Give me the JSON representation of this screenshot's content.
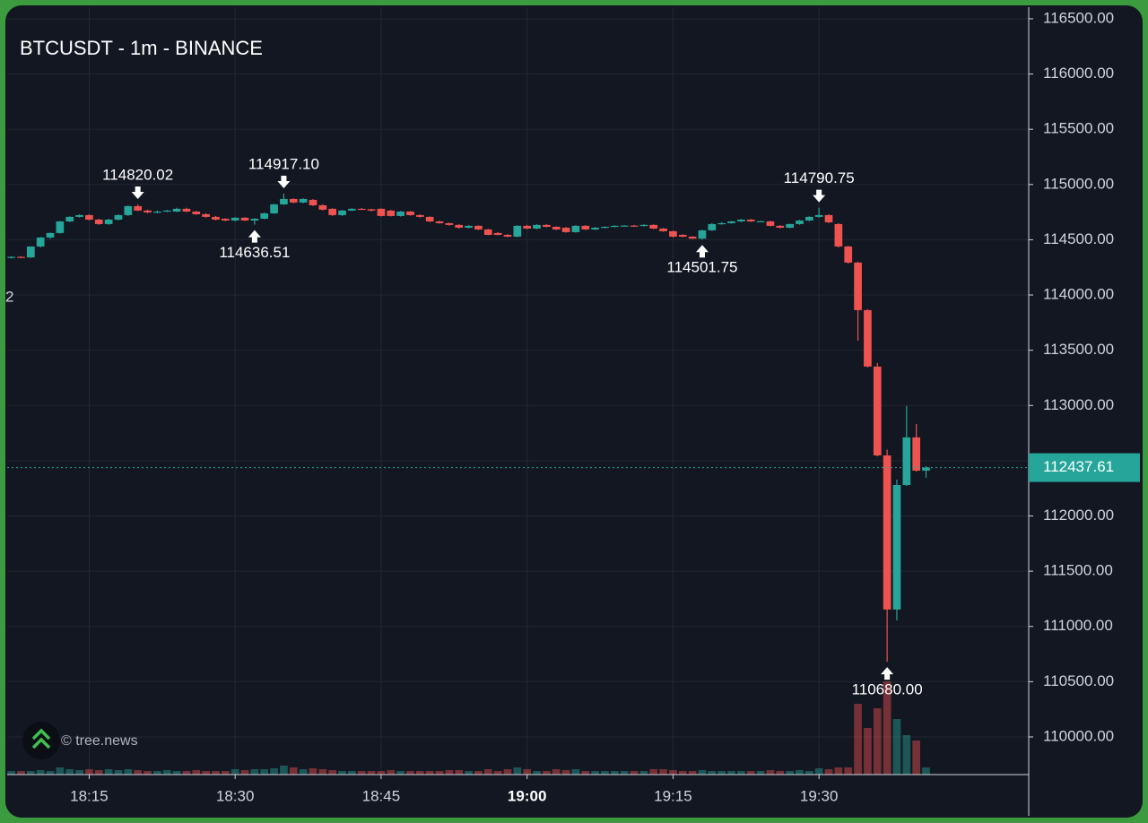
{
  "chart_data": {
    "type": "candlestick",
    "title": "BTCUSDT - 1m - BINANCE",
    "watermark": "© tree.news",
    "left_label": "2",
    "up_color": "#26a69a",
    "down_color": "#ef5350",
    "grid": true,
    "categories": [
      null,
      null,
      null,
      null,
      null,
      null,
      null,
      null,
      "18:15",
      null,
      null,
      null,
      null,
      null,
      null,
      null,
      null,
      null,
      null,
      null,
      null,
      null,
      null,
      "18:30",
      null,
      null,
      null,
      null,
      null,
      null,
      null,
      null,
      null,
      null,
      null,
      null,
      null,
      null,
      "18:45",
      null,
      null,
      null,
      null,
      null,
      null,
      null,
      null,
      null,
      null,
      null,
      null,
      null,
      null,
      "19:00",
      null,
      null,
      null,
      null,
      null,
      null,
      null,
      null,
      null,
      null,
      null,
      null,
      null,
      null,
      "19:15",
      null,
      null,
      null,
      null,
      null,
      null,
      null,
      null,
      null,
      null,
      null,
      null,
      null,
      null,
      "19:30",
      null,
      null,
      null,
      null,
      null,
      null,
      null,
      null,
      null,
      null,
      null
    ],
    "bold_category": 53,
    "open": [
      114341,
      114345,
      114340,
      114439,
      114520,
      114561,
      114666,
      114707,
      114723,
      114682,
      114642,
      114682,
      114723,
      114804,
      114764,
      114747,
      114755,
      114755,
      114780,
      114755,
      114731,
      114707,
      114690,
      114674,
      114699,
      114674,
      114690,
      114739,
      114820,
      114869,
      114837,
      114861,
      114812,
      114780,
      114723,
      114764,
      114780,
      114776,
      114780,
      114764,
      114715,
      114755,
      114723,
      114707,
      114666,
      114650,
      114634,
      114609,
      114626,
      114593,
      114561,
      114544,
      114528,
      114626,
      114601,
      114634,
      114617,
      114609,
      114569,
      114626,
      114593,
      114609,
      114617,
      114626,
      114628,
      114626,
      114634,
      114601,
      114577,
      114544,
      114528,
      114510,
      114585,
      114642,
      114650,
      114666,
      114682,
      114666,
      114666,
      114626,
      114609,
      114642,
      114674,
      114707,
      114723,
      114642,
      114439,
      114293,
      113863,
      113352,
      112548,
      111153,
      112280,
      112711,
      112410
    ],
    "high": [
      114350,
      114352,
      114440,
      114525,
      114565,
      114670,
      114712,
      114730,
      114730,
      114690,
      114690,
      114730,
      114810,
      114820.02,
      114772,
      114765,
      114770,
      114790,
      114790,
      114760,
      114740,
      114715,
      114695,
      114705,
      114705,
      114695,
      114745,
      114825,
      114917.1,
      114875,
      114875,
      114868,
      114820,
      114785,
      114770,
      114785,
      114788,
      114780,
      114785,
      114770,
      114760,
      114760,
      114730,
      114712,
      114672,
      114655,
      114640,
      114632,
      114630,
      114600,
      114568,
      114550,
      114632,
      114635,
      114640,
      114640,
      114622,
      114615,
      114632,
      114632,
      114615,
      114622,
      114630,
      114632,
      114634,
      114640,
      114640,
      114606,
      114582,
      114550,
      114532,
      114590,
      114650,
      114660,
      114670,
      114688,
      114688,
      114672,
      114672,
      114632,
      114645,
      114680,
      114712,
      114790.75,
      114730,
      114650,
      114445,
      114300,
      113870,
      113384,
      112600,
      112329,
      112995,
      112832,
      112450
    ],
    "low": [
      114330,
      114335,
      114335,
      114430,
      114510,
      114555,
      114660,
      114700,
      114675,
      114635,
      114635,
      114675,
      114715,
      114760,
      114740,
      114740,
      114750,
      114750,
      114750,
      114725,
      114700,
      114675,
      114668,
      114668,
      114670,
      114636.51,
      114685,
      114735,
      114815,
      114830,
      114830,
      114805,
      114765,
      114715,
      114715,
      114760,
      114770,
      114755,
      114710,
      114710,
      114710,
      114718,
      114700,
      114660,
      114645,
      114628,
      114600,
      114603,
      114588,
      114540,
      114540,
      114522,
      114522,
      114596,
      114595,
      114612,
      114588,
      114564,
      114563,
      114588,
      114588,
      114604,
      114612,
      114620,
      114620,
      114620,
      114596,
      114572,
      114522,
      114522,
      114506,
      114501.75,
      114580,
      114636,
      114645,
      114660,
      114660,
      114660,
      114620,
      114604,
      114603,
      114636,
      114668,
      114700,
      114650,
      114430,
      114285,
      113587,
      113345,
      112540,
      110680,
      111055,
      112270,
      112400,
      112345
    ],
    "close": [
      114345,
      114340,
      114439,
      114520,
      114561,
      114666,
      114707,
      114723,
      114682,
      114642,
      114682,
      114723,
      114804,
      114764,
      114747,
      114755,
      114764,
      114780,
      114755,
      114731,
      114707,
      114682,
      114674,
      114699,
      114674,
      114690,
      114739,
      114820,
      114869,
      114837,
      114869,
      114812,
      114772,
      114723,
      114764,
      114780,
      114776,
      114764,
      114715,
      114715,
      114755,
      114723,
      114707,
      114666,
      114650,
      114634,
      114609,
      114626,
      114593,
      114544,
      114544,
      114528,
      114626,
      114601,
      114634,
      114617,
      114593,
      114569,
      114626,
      114593,
      114609,
      114617,
      114626,
      114628,
      114626,
      114634,
      114601,
      114577,
      114528,
      114528,
      114510,
      114585,
      114642,
      114650,
      114666,
      114682,
      114666,
      114668,
      114626,
      114609,
      114642,
      114674,
      114707,
      114723,
      114658,
      114439,
      114293,
      113863,
      113352,
      112548,
      111153,
      112280,
      112711,
      112410,
      112437.61
    ],
    "volume": [
      4,
      4,
      4,
      5,
      4,
      8,
      6,
      5,
      6,
      5,
      6,
      5,
      6,
      5,
      4,
      4,
      5,
      4,
      4,
      5,
      4,
      4,
      4,
      6,
      5,
      6,
      6,
      7,
      10,
      8,
      6,
      7,
      6,
      5,
      4,
      4,
      4,
      4,
      4,
      5,
      4,
      4,
      4,
      4,
      4,
      5,
      5,
      4,
      4,
      6,
      4,
      6,
      8,
      6,
      4,
      4,
      6,
      5,
      6,
      4,
      4,
      4,
      4,
      4,
      4,
      4,
      6,
      6,
      5,
      4,
      4,
      5,
      4,
      4,
      4,
      4,
      4,
      4,
      5,
      4,
      4,
      5,
      4,
      7,
      6,
      8,
      8,
      79,
      52,
      74,
      104,
      62,
      44,
      38,
      8
    ],
    "marked_highs": [
      {
        "index": 13,
        "label": "114820.02"
      },
      {
        "index": 28,
        "label": "114917.10"
      },
      {
        "index": 83,
        "label": "114790.75"
      }
    ],
    "marked_lows": [
      {
        "index": 25,
        "label": "114636.51"
      },
      {
        "index": 71,
        "label": "114501.75"
      },
      {
        "index": 90,
        "label": "110680.00"
      }
    ],
    "ylim": [
      109659,
      116605
    ],
    "yticks": [
      {
        "value": 110000,
        "label": "110000.00"
      },
      {
        "value": 110500,
        "label": "110500.00"
      },
      {
        "value": 111000,
        "label": "111000.00"
      },
      {
        "value": 111500,
        "label": "111500.00"
      },
      {
        "value": 112000,
        "label": "112000.00"
      },
      {
        "value": 112500,
        "label": "112500.00"
      },
      {
        "value": 113000,
        "label": "113000.00"
      },
      {
        "value": 113500,
        "label": "113500.00"
      },
      {
        "value": 114000,
        "label": "114000.00"
      },
      {
        "value": 114500,
        "label": "114500.00"
      },
      {
        "value": 115000,
        "label": "115000.00"
      },
      {
        "value": 115500,
        "label": "115500.00"
      },
      {
        "value": 116000,
        "label": "116000.00"
      },
      {
        "value": 116500,
        "label": "116500.00"
      }
    ]
  }
}
